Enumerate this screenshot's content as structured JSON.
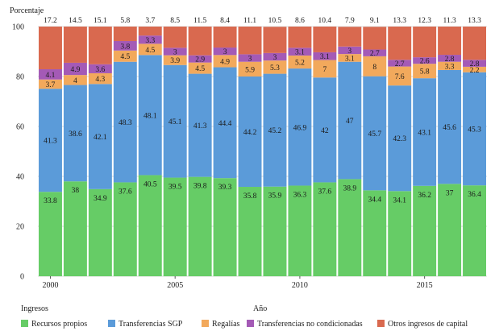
{
  "chart_data": {
    "type": "bar",
    "stacked": true,
    "ylabel": "Porcentaje",
    "xlabel": "Año",
    "legend_title": "Ingresos",
    "ylim": [
      0,
      100
    ],
    "yticks": [
      0,
      20,
      40,
      60,
      80,
      100
    ],
    "grid": true,
    "legend_position": "bottom",
    "categories": [
      2000,
      2001,
      2002,
      2003,
      2004,
      2005,
      2006,
      2007,
      2008,
      2009,
      2010,
      2011,
      2012,
      2013,
      2014,
      2015,
      2016,
      2017
    ],
    "x_tick_labels": [
      "2000",
      "2005",
      "2010",
      "2015"
    ],
    "series": [
      {
        "name": "Recursos propios",
        "color": "#66cc66",
        "values": [
          33.8,
          38,
          34.9,
          37.6,
          40.5,
          39.5,
          39.8,
          39.3,
          35.8,
          35.9,
          36.3,
          37.6,
          38.9,
          34.4,
          34.1,
          36.2,
          37,
          36.4
        ]
      },
      {
        "name": "Transferencias SGP",
        "color": "#5b9bd9",
        "values": [
          41.3,
          38.6,
          42.1,
          48.3,
          48.1,
          45.1,
          41.3,
          44.4,
          44.2,
          45.2,
          46.9,
          42,
          47,
          45.7,
          42.3,
          43.1,
          45.6,
          45.3
        ]
      },
      {
        "name": "Regalías",
        "color": "#f2a95c",
        "values": [
          3.7,
          4,
          4.3,
          4.5,
          4.5,
          3.9,
          4.5,
          4.9,
          5.9,
          5.3,
          5.2,
          7,
          3.1,
          8,
          7.6,
          5.8,
          3.3,
          2.2
        ]
      },
      {
        "name": "Transferencias no condicionadas",
        "color": "#a45ab6",
        "values": [
          4.1,
          4.9,
          3.6,
          3.8,
          3.3,
          3,
          2.9,
          3,
          3,
          3,
          3.1,
          3.1,
          3,
          2.7,
          2.7,
          2.6,
          2.8,
          2.8
        ]
      },
      {
        "name": "Otros ingresos de capital",
        "color": "#d9694f",
        "values": [
          17.2,
          14.5,
          15.1,
          5.8,
          3.7,
          8.5,
          11.5,
          8.4,
          11.1,
          10.5,
          8.6,
          10.4,
          7.9,
          9.1,
          13.3,
          12.3,
          11.3,
          13.3
        ]
      }
    ],
    "displayed_labels": [
      [
        "33.8",
        "38",
        "34.9",
        "37.6",
        "40.5",
        "39.5",
        "39.8",
        "39.3",
        "35.8",
        "35.9",
        "36.3",
        "37.6",
        "38.9",
        "34.4",
        "34.1",
        "36.2",
        "37",
        "36.4"
      ],
      [
        "41.3",
        "38.6",
        "42.1",
        "48.3",
        "48.1",
        "45.1",
        "41.3",
        "44.4",
        "44.2",
        "45.2",
        "46.9",
        "42",
        "47",
        "45.7",
        "42.3",
        "43.1",
        "45.6",
        "45.3"
      ],
      [
        "3.7",
        "4",
        "4.3",
        "4.5",
        "4.5",
        "3.9",
        "4.5",
        "4.9",
        "5.9",
        "5.3",
        "5.2",
        "7",
        "3.1",
        "8",
        "7.6",
        "5.8",
        "3.3",
        "2.2"
      ],
      [
        "4.1",
        "4.9",
        "3.6",
        "3.8",
        "3.3",
        "3",
        "2.9",
        "3",
        "3",
        "3",
        "3.1",
        "3.1",
        "3",
        "2.7",
        "2.7",
        "2.6",
        "2.8",
        "2.8"
      ],
      [
        "17.2",
        "14.5",
        "15.1",
        "5.8",
        "3.7",
        "8.5",
        "11.5",
        "8.4",
        "11.1",
        "10.5",
        "8.6",
        "10.4",
        "7.9",
        "9.1",
        "13.3",
        "12.3",
        "11.3",
        "13.3"
      ]
    ]
  }
}
